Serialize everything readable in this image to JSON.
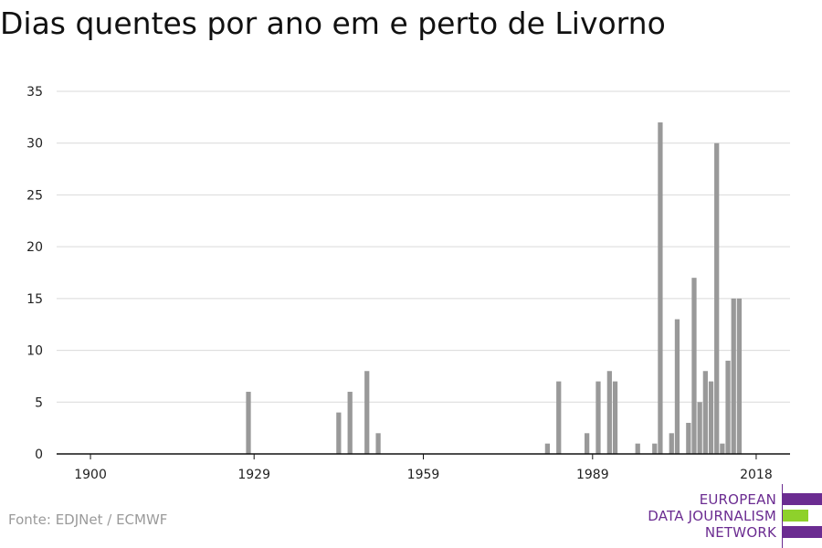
{
  "chart_data": {
    "type": "bar",
    "title": "Dias quentes por ano em e perto de Livorno",
    "xlabel": "",
    "ylabel": "",
    "x_ticks": [
      "1900",
      "1929",
      "1959",
      "1989",
      "2018"
    ],
    "y_ticks": [
      "0",
      "5",
      "10",
      "15",
      "20",
      "25",
      "30",
      "35"
    ],
    "xlim": [
      1894,
      2024
    ],
    "ylim": [
      0,
      35
    ],
    "grid": "horizontal",
    "bar_color": "#999999",
    "x": [
      1928,
      1944,
      1946,
      1949,
      1951,
      1981,
      1983,
      1988,
      1990,
      1992,
      1993,
      1997,
      2000,
      2001,
      2003,
      2004,
      2006,
      2007,
      2008,
      2009,
      2010,
      2011,
      2012,
      2013,
      2014,
      2015
    ],
    "values": [
      6,
      4,
      6,
      8,
      2,
      1,
      7,
      2,
      7,
      8,
      7,
      1,
      1,
      32,
      2,
      13,
      3,
      17,
      5,
      8,
      7,
      30,
      1,
      9,
      15,
      15
    ]
  },
  "source": "Fonte: EDJNet / ECMWF",
  "logo": {
    "lines": [
      "EUROPEAN",
      "DATA JOURNALISM",
      "NETWORK"
    ],
    "purple": "#6b2c91",
    "green": "#8ed12b"
  }
}
